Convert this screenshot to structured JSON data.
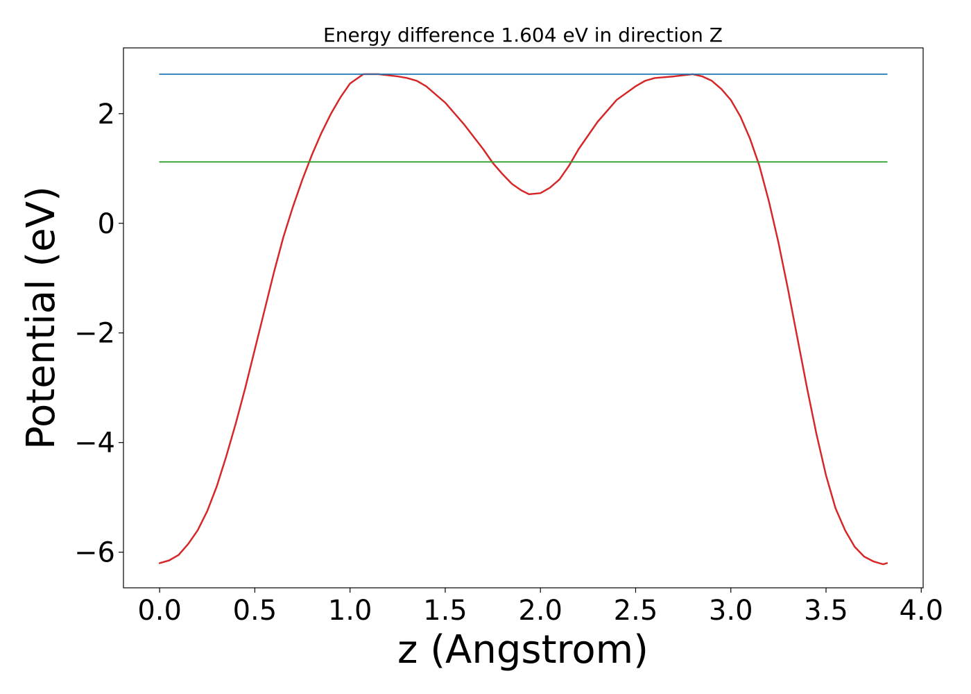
{
  "chart_data": {
    "type": "line",
    "title": "Energy difference 1.604 eV in direction Z",
    "xlabel": "z (Angstrom)",
    "ylabel": "Potential (eV)",
    "xlim": [
      -0.19,
      4.01
    ],
    "ylim": [
      -6.65,
      3.2
    ],
    "xticks": [
      0.0,
      0.5,
      1.0,
      1.5,
      2.0,
      2.5,
      3.0,
      3.5,
      4.0
    ],
    "xtick_labels": [
      "0.0",
      "0.5",
      "1.0",
      "1.5",
      "2.0",
      "2.5",
      "3.0",
      "3.5",
      "4.0"
    ],
    "yticks": [
      -6,
      -4,
      -2,
      0,
      2
    ],
    "ytick_labels": [
      "−6",
      "−4",
      "−2",
      "0",
      "2"
    ],
    "grid": false,
    "series": [
      {
        "color": "#d62728",
        "x": [
          0.0,
          0.05,
          0.1,
          0.15,
          0.2,
          0.25,
          0.3,
          0.35,
          0.4,
          0.45,
          0.5,
          0.55,
          0.6,
          0.65,
          0.7,
          0.75,
          0.8,
          0.85,
          0.9,
          0.95,
          1.0,
          1.07,
          1.15,
          1.25,
          1.3,
          1.35,
          1.4,
          1.5,
          1.6,
          1.7,
          1.75,
          1.8,
          1.85,
          1.9,
          1.94,
          2.0,
          2.05,
          2.1,
          2.15,
          2.2,
          2.3,
          2.4,
          2.5,
          2.55,
          2.6,
          2.7,
          2.8,
          2.85,
          2.9,
          2.95,
          3.0,
          3.05,
          3.1,
          3.15,
          3.2,
          3.25,
          3.3,
          3.35,
          3.4,
          3.45,
          3.5,
          3.55,
          3.6,
          3.65,
          3.7,
          3.75,
          3.8,
          3.82
        ],
        "y": [
          -6.2,
          -6.15,
          -6.05,
          -5.85,
          -5.6,
          -5.25,
          -4.8,
          -4.25,
          -3.65,
          -3.0,
          -2.3,
          -1.6,
          -0.9,
          -0.25,
          0.3,
          0.8,
          1.25,
          1.65,
          2.0,
          2.3,
          2.55,
          2.72,
          2.72,
          2.68,
          2.65,
          2.6,
          2.5,
          2.2,
          1.8,
          1.35,
          1.1,
          0.9,
          0.72,
          0.6,
          0.53,
          0.55,
          0.65,
          0.8,
          1.05,
          1.35,
          1.85,
          2.25,
          2.5,
          2.6,
          2.65,
          2.68,
          2.72,
          2.68,
          2.6,
          2.45,
          2.25,
          1.95,
          1.55,
          1.05,
          0.4,
          -0.35,
          -1.2,
          -2.1,
          -3.0,
          -3.85,
          -4.6,
          -5.2,
          -5.6,
          -5.9,
          -6.08,
          -6.17,
          -6.22,
          -6.2
        ]
      },
      {
        "color": "#1f77b4",
        "x": [
          0.0,
          3.82
        ],
        "y": [
          2.72,
          2.72
        ]
      },
      {
        "color": "#2ca02c",
        "x": [
          0.0,
          3.82
        ],
        "y": [
          1.12,
          1.12
        ]
      }
    ]
  }
}
